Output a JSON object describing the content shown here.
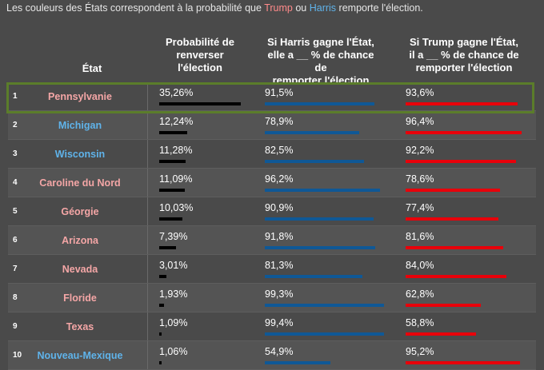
{
  "caption": {
    "prefix": "Les couleurs des États correspondent à la probabilité que ",
    "trump": "Trump",
    "middle": " ou ",
    "harris": "Harris",
    "suffix": " remporte l'élection."
  },
  "headers": {
    "state": "État",
    "prob_1": "Probabilité de",
    "prob_2": "renverser",
    "prob_3": "l'élection",
    "harris_1": "Si Harris gagne l'État,",
    "harris_2": "elle a __ % de chance de",
    "harris_3": "remporter l'élection",
    "trump_1": "Si Trump gagne l'État,",
    "trump_2": "il a __ % de chance de",
    "trump_3": "remporter l'élection"
  },
  "colors": {
    "republican": "#f4a6a6",
    "democrat": "#5fb3ea",
    "harris_bar": "#0f5896",
    "trump_bar": "#e8000a",
    "tipping_bar": "#000000",
    "highlight": "#5b7d2a"
  },
  "rows": [
    {
      "rank": "1",
      "state": "Pennsylvanie",
      "party": "r",
      "prob": "35,26%",
      "prob_v": 35.26,
      "harris": "91,5%",
      "harris_v": 91.5,
      "trump": "93,6%",
      "trump_v": 93.6
    },
    {
      "rank": "2",
      "state": "Michigan",
      "party": "d",
      "prob": "12,24%",
      "prob_v": 12.24,
      "harris": "78,9%",
      "harris_v": 78.9,
      "trump": "96,4%",
      "trump_v": 96.4
    },
    {
      "rank": "3",
      "state": "Wisconsin",
      "party": "d",
      "prob": "11,28%",
      "prob_v": 11.28,
      "harris": "82,5%",
      "harris_v": 82.5,
      "trump": "92,2%",
      "trump_v": 92.2
    },
    {
      "rank": "4",
      "state": "Caroline du Nord",
      "party": "r",
      "prob": "11,09%",
      "prob_v": 11.09,
      "harris": "96,2%",
      "harris_v": 96.2,
      "trump": "78,6%",
      "trump_v": 78.6
    },
    {
      "rank": "5",
      "state": "Géorgie",
      "party": "r",
      "prob": "10,03%",
      "prob_v": 10.03,
      "harris": "90,9%",
      "harris_v": 90.9,
      "trump": "77,4%",
      "trump_v": 77.4
    },
    {
      "rank": "6",
      "state": "Arizona",
      "party": "r",
      "prob": "7,39%",
      "prob_v": 7.39,
      "harris": "91,8%",
      "harris_v": 91.8,
      "trump": "81,6%",
      "trump_v": 81.6
    },
    {
      "rank": "7",
      "state": "Nevada",
      "party": "r",
      "prob": "3,01%",
      "prob_v": 3.01,
      "harris": "81,3%",
      "harris_v": 81.3,
      "trump": "84,0%",
      "trump_v": 84.0
    },
    {
      "rank": "8",
      "state": "Floride",
      "party": "r",
      "prob": "1,93%",
      "prob_v": 1.93,
      "harris": "99,3%",
      "harris_v": 99.3,
      "trump": "62,8%",
      "trump_v": 62.8
    },
    {
      "rank": "9",
      "state": "Texas",
      "party": "r",
      "prob": "1,09%",
      "prob_v": 1.09,
      "harris": "99,4%",
      "harris_v": 99.4,
      "trump": "58,8%",
      "trump_v": 58.8
    },
    {
      "rank": "10",
      "state": "Nouveau-Mexique",
      "party": "d",
      "prob": "1,06%",
      "prob_v": 1.06,
      "harris": "54,9%",
      "harris_v": 54.9,
      "trump": "95,2%",
      "trump_v": 95.2
    }
  ]
}
